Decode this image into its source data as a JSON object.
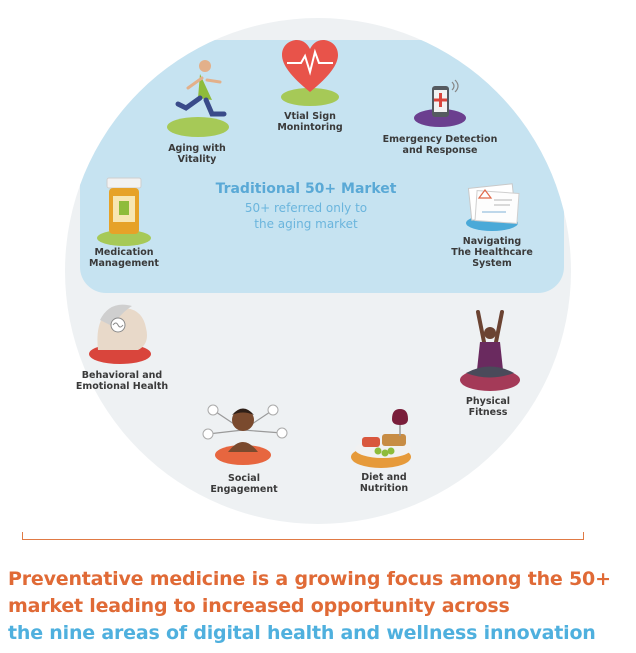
{
  "colors": {
    "circle": "#eef1f3",
    "band": "#c6e3f1",
    "orange": "#e06a36",
    "blue": "#4fb0de",
    "text": "#3a3a3a"
  },
  "center": {
    "title": "Traditional 50+ Market",
    "subtitle": "50+ referred only to\nthe aging market"
  },
  "areas": [
    {
      "label": "Vtial Sign\nMonintoring",
      "icon": "heart-pulse-icon"
    },
    {
      "label": "Emergency Detection\nand Response",
      "icon": "smartphone-alert-icon"
    },
    {
      "label": "Navigating\nThe Healthcare\nSystem",
      "icon": "documents-icon"
    },
    {
      "label": "Physical\nFitness",
      "icon": "yoga-person-icon"
    },
    {
      "label": "Diet and\nNutrition",
      "icon": "food-plate-icon"
    },
    {
      "label": "Social\nEngagement",
      "icon": "social-network-person-icon"
    },
    {
      "label": "Behavioral and\nEmotional Health",
      "icon": "brain-head-icon"
    },
    {
      "label": "Medication\nManagement",
      "icon": "pill-bottle-icon"
    },
    {
      "label": "Aging with\nVitality",
      "icon": "running-man-icon"
    }
  ],
  "tagline": {
    "line1": "Preventative medicine is a growing focus among the 50+",
    "line2": "market leading to increased opportunity across",
    "line3": "the nine areas of digital health and wellness innovation"
  }
}
